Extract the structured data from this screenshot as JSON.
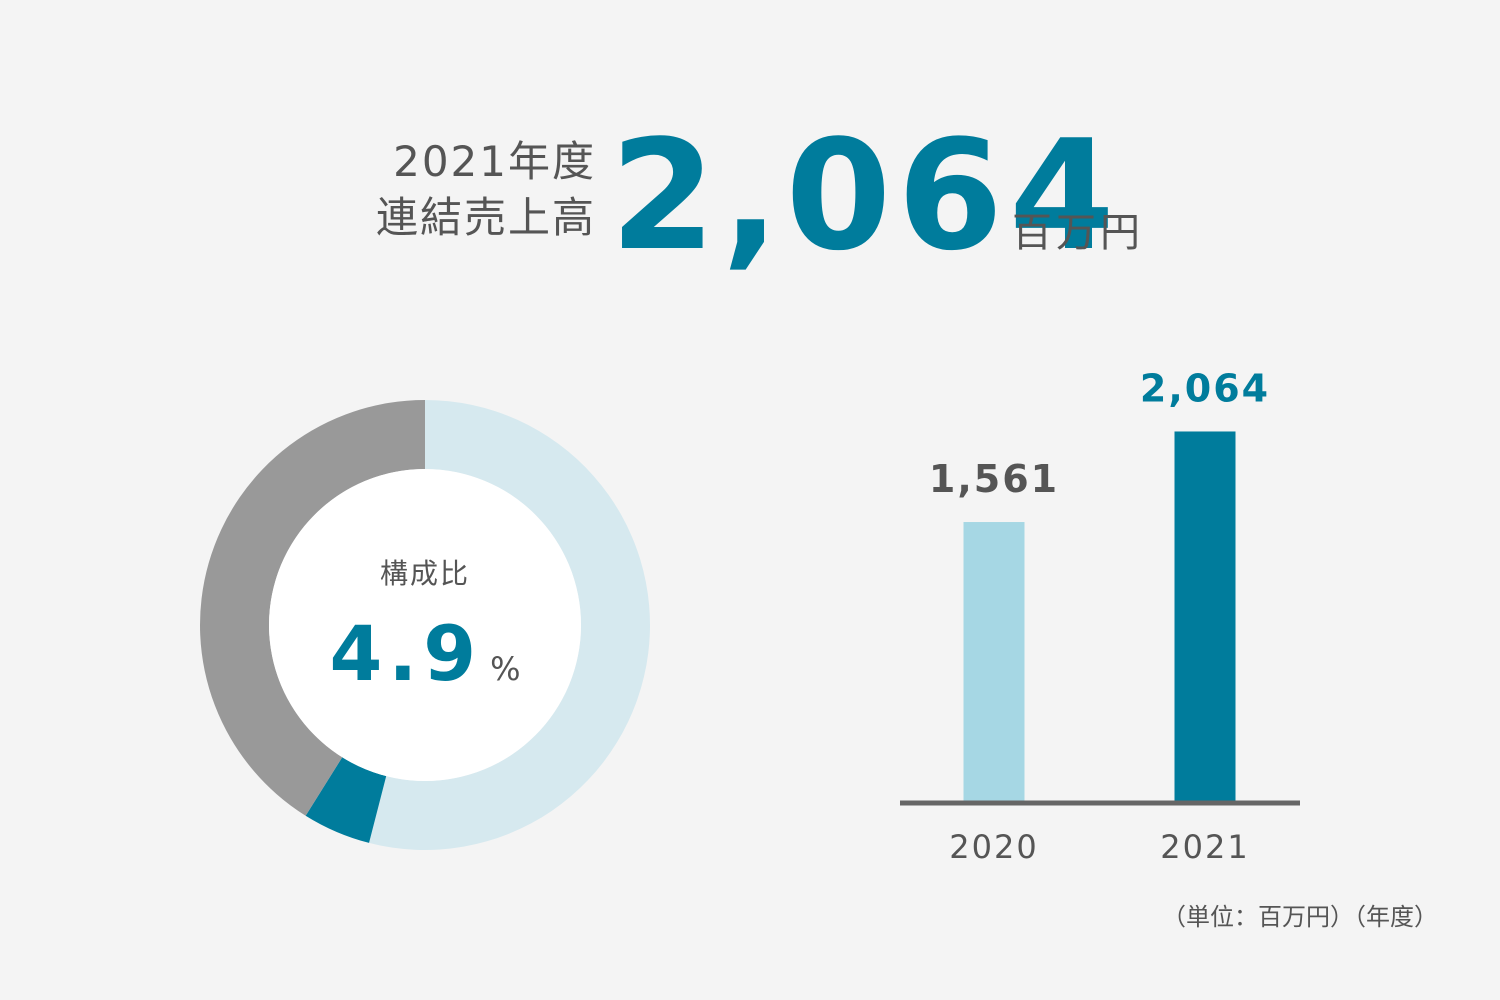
{
  "headline": {
    "label_line1": "2021年度",
    "label_line2": "連結売上高",
    "value": "2,064",
    "unit": "百万円"
  },
  "chart_data": [
    {
      "type": "pie",
      "style": "donut",
      "center_label": "構成比",
      "center_value": "4.9",
      "center_unit": "%",
      "slices": [
        {
          "value": 54.0,
          "color": "#d6e9ef"
        },
        {
          "value": 4.9,
          "color": "#007c9c"
        },
        {
          "value": 41.1,
          "color": "#999999"
        }
      ]
    },
    {
      "type": "bar",
      "categories": [
        "2020",
        "2021"
      ],
      "values": [
        1561,
        2064
      ],
      "value_labels": [
        "1,561",
        "2,064"
      ],
      "colors": [
        "#a6d7e4",
        "#007c9c"
      ],
      "label_colors": [
        "#555555",
        "#007c9c"
      ],
      "ylim": [
        0,
        2400
      ],
      "unit_note": "（単位：百万円）（年度）"
    }
  ]
}
